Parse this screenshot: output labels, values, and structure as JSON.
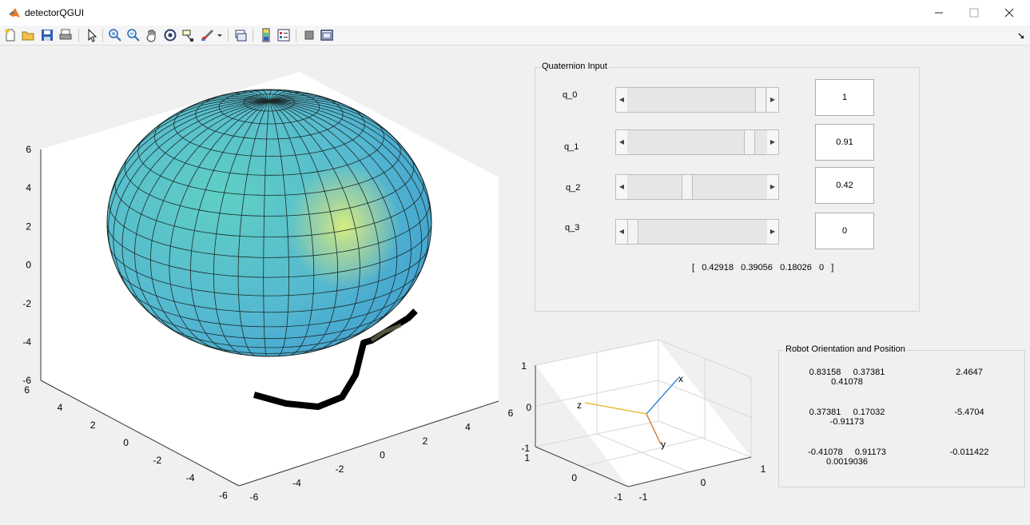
{
  "window": {
    "title": "detectorQGUI",
    "minimize_icon": "minimize-icon",
    "maximize_icon": "maximize-icon",
    "close_icon": "close-icon"
  },
  "toolbar": {
    "icons": [
      "new-file-icon",
      "open-folder-icon",
      "save-icon",
      "print-icon",
      "pointer-icon",
      "zoom-in-icon",
      "zoom-out-icon",
      "pan-hand-icon",
      "rotate-3d-icon",
      "data-cursor-icon",
      "brush-icon",
      "brush-dropdown-icon",
      "link-plot-icon",
      "colorbar-icon",
      "legend-icon",
      "hide-plot-tools-icon",
      "show-plot-tools-icon",
      "dock-icon"
    ]
  },
  "colors": {
    "sphere": "#5cc4cc",
    "highlight": "#dcef6a",
    "x_axis": "#1f77d4",
    "y_axis": "#d96a2e",
    "z_axis": "#e6b320"
  },
  "main_plot": {
    "z_ticks": [
      "6",
      "4",
      "2",
      "0",
      "-2",
      "-4",
      "-6"
    ],
    "y_ticks": [
      "6",
      "4",
      "2",
      "0",
      "-2",
      "-4",
      "-6"
    ],
    "x_ticks": [
      "-6",
      "-4",
      "-2",
      "0",
      "2",
      "4",
      "6"
    ]
  },
  "quaternion_panel": {
    "title": "Quaternion Input",
    "rows": [
      {
        "label": "q_0",
        "value": "1",
        "fraction": 1.0
      },
      {
        "label": "q_1",
        "value": "0.91",
        "fraction": 0.91
      },
      {
        "label": "q_2",
        "value": "0.42",
        "fraction": 0.42
      },
      {
        "label": "q_3",
        "value": "0",
        "fraction": 0.0
      }
    ],
    "normalized": "[   0.42918   0.39056   0.18026   0   ]"
  },
  "axes_plot": {
    "z_ticks": [
      "1",
      "0",
      "-1"
    ],
    "y_ticks": [
      "1",
      "0",
      "-1"
    ],
    "x_ticks": [
      "-1",
      "0",
      "1"
    ],
    "labels": {
      "x": "x",
      "y": "y",
      "z": "z"
    }
  },
  "robot_panel": {
    "title": "Robot Orientation and Position",
    "rows": [
      {
        "r1": "0.83158     0.37381",
        "r2": "0.41078",
        "pos": "2.4647"
      },
      {
        "r1": "0.37381     0.17032",
        "r2": "-0.91173",
        "pos": "-5.4704"
      },
      {
        "r1": "-0.41078     0.91173",
        "r2": "0.0019036",
        "pos": "-0.011422"
      }
    ]
  }
}
